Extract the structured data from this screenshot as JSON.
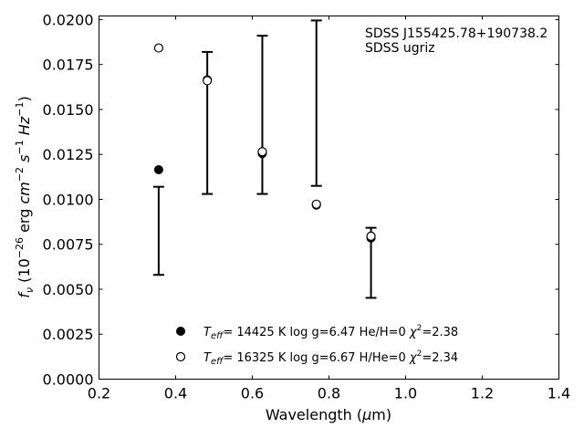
{
  "chart_data": {
    "type": "scatter",
    "xlabel_pre": "Wavelength (",
    "xlabel_mu": "μ",
    "xlabel_post": "m)",
    "xlim": [
      0.2,
      1.4
    ],
    "ylim": [
      0.0,
      0.0202
    ],
    "x_ticks": [
      0.2,
      0.4,
      0.6,
      0.8,
      1.0,
      1.2,
      1.4
    ],
    "x_tick_labels": [
      "0.2",
      "0.4",
      "0.6",
      "0.8",
      "1.0",
      "1.2",
      "1.4"
    ],
    "y_ticks": [
      0.0,
      0.0025,
      0.005,
      0.0075,
      0.01,
      0.0125,
      0.015,
      0.0175,
      0.02
    ],
    "y_tick_labels": [
      "0.0000",
      "0.0025",
      "0.0050",
      "0.0075",
      "0.0100",
      "0.0125",
      "0.0150",
      "0.0175",
      "0.0200"
    ],
    "annotation_line1": "SDSS J155425.78+190738.2",
    "annotation_line2": "SDSS ugriz",
    "observed": {
      "x": [
        0.3557,
        0.4825,
        0.6261,
        0.7672,
        0.9097
      ],
      "y": [
        0.00825,
        0.01425,
        0.0147,
        0.01535,
        0.00647
      ],
      "yerr": [
        0.00245,
        0.00395,
        0.0044,
        0.0046,
        0.00195
      ]
    },
    "series": [
      {
        "marker": "filled-circle",
        "x": [
          0.3557,
          0.4825,
          0.6261,
          0.7672,
          0.9097
        ],
        "y": [
          0.01165,
          0.01665,
          0.01255,
          0.00968,
          0.00785
        ],
        "legend": {
          "teff": "= 14425 K  log g=6.47  He/H=0  ",
          "chi": "=2.38"
        }
      },
      {
        "marker": "open-circle",
        "x": [
          0.3557,
          0.4825,
          0.6261,
          0.7672,
          0.9097
        ],
        "y": [
          0.01842,
          0.0166,
          0.01265,
          0.00973,
          0.00795
        ],
        "legend": {
          "teff": "= 16325 K  log g=6.67  H/He=0  ",
          "chi": "=2.34"
        }
      }
    ]
  }
}
